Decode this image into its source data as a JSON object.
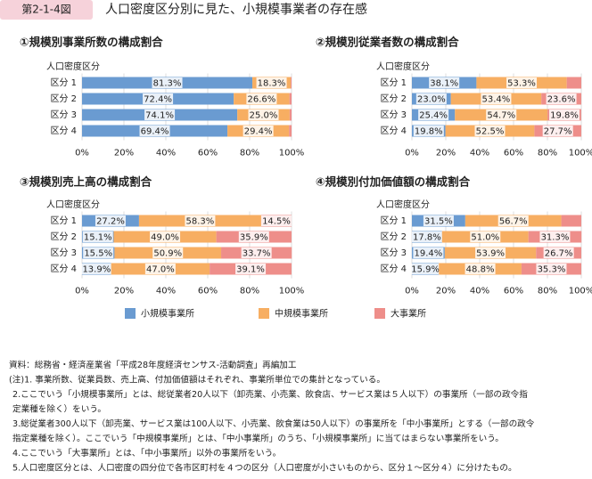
{
  "header": {
    "figure_number": "第2-1-4図",
    "title": "人口密度区分別に見た、小規模事業者の存在感"
  },
  "chart_data": [
    {
      "type": "stacked-bar-horizontal",
      "title": "①規模別事業所数の構成割合",
      "y_label": "人口密度区分",
      "categories": [
        "区分 1",
        "区分 2",
        "区分 3",
        "区分 4"
      ],
      "series": [
        {
          "name": "小規模事業所",
          "color": "#6a9bd1",
          "values": [
            81.3,
            72.4,
            74.1,
            69.4
          ],
          "value_labels": [
            "81.3%",
            "72.4%",
            "74.1%",
            "69.4%"
          ]
        },
        {
          "name": "中規模事業所",
          "color": "#f7ae62",
          "values": [
            18.3,
            26.6,
            25.0,
            29.4
          ],
          "value_labels": [
            "18.3%",
            "26.6%",
            "25.0%",
            "29.4%"
          ]
        },
        {
          "name": "大事業所",
          "color": "#ee8e8a",
          "values": [
            0.4,
            1.0,
            0.9,
            1.2
          ],
          "value_labels": [
            null,
            null,
            null,
            null
          ]
        }
      ],
      "xlim": [
        0,
        100
      ],
      "xticks": [
        {
          "value": 0,
          "label": "0%"
        },
        {
          "value": 20,
          "label": "20%"
        },
        {
          "value": 40,
          "label": "40%"
        },
        {
          "value": 60,
          "label": "60%"
        },
        {
          "value": 80,
          "label": "80%"
        },
        {
          "value": 100,
          "label": "100%"
        }
      ],
      "grid": true
    },
    {
      "type": "stacked-bar-horizontal",
      "title": "②規模別従業者数の構成割合",
      "y_label": "人口密度区分",
      "categories": [
        "区分 1",
        "区分 2",
        "区分 3",
        "区分 4"
      ],
      "series": [
        {
          "color": "#6a9bd1",
          "values": [
            38.1,
            23.0,
            25.4,
            19.8
          ],
          "value_labels": [
            "38.1%",
            "23.0%",
            "25.4%",
            "19.8%"
          ]
        },
        {
          "color": "#f7ae62",
          "values": [
            53.3,
            53.4,
            54.7,
            52.5
          ],
          "value_labels": [
            "53.3%",
            "53.4%",
            "54.7%",
            "52.5%"
          ]
        },
        {
          "color": "#ee8e8a",
          "values": [
            8.6,
            23.6,
            19.8,
            27.7
          ],
          "value_labels": [
            null,
            "23.6%",
            "19.8%",
            "27.7%"
          ]
        }
      ],
      "xlim": [
        0,
        100
      ],
      "xticks": [
        {
          "value": 0,
          "label": "0%"
        },
        {
          "value": 20,
          "label": "20%"
        },
        {
          "value": 40,
          "label": "40%"
        },
        {
          "value": 60,
          "label": "60%"
        },
        {
          "value": 80,
          "label": "80%"
        },
        {
          "value": 100,
          "label": "100%"
        }
      ],
      "grid": true
    },
    {
      "type": "stacked-bar-horizontal",
      "title": "③規模別売上高の構成割合",
      "y_label": "人口密度区分",
      "categories": [
        "区分 1",
        "区分 2",
        "区分 3",
        "区分 4"
      ],
      "series": [
        {
          "color": "#6a9bd1",
          "values": [
            27.2,
            15.1,
            15.5,
            13.9
          ],
          "value_labels": [
            "27.2%",
            "15.1%",
            "15.5%",
            "13.9%"
          ]
        },
        {
          "color": "#f7ae62",
          "values": [
            58.3,
            49.0,
            50.9,
            47.0
          ],
          "value_labels": [
            "58.3%",
            "49.0%",
            "50.9%",
            "47.0%"
          ]
        },
        {
          "color": "#ee8e8a",
          "values": [
            14.5,
            35.9,
            33.7,
            39.1
          ],
          "value_labels": [
            "14.5%",
            "35.9%",
            "33.7%",
            "39.1%"
          ]
        }
      ],
      "xlim": [
        0,
        100
      ],
      "xticks": [
        {
          "value": 0,
          "label": "0%"
        },
        {
          "value": 20,
          "label": "20%"
        },
        {
          "value": 40,
          "label": "40%"
        },
        {
          "value": 60,
          "label": "60%"
        },
        {
          "value": 80,
          "label": "80%"
        },
        {
          "value": 100,
          "label": "100%"
        }
      ],
      "grid": true
    },
    {
      "type": "stacked-bar-horizontal",
      "title": "④規模別付加価値額の構成割合",
      "y_label": "人口密度区分",
      "categories": [
        "区分 1",
        "区分 2",
        "区分 3",
        "区分 4"
      ],
      "series": [
        {
          "color": "#6a9bd1",
          "values": [
            31.5,
            17.8,
            19.4,
            15.9
          ],
          "value_labels": [
            "31.5%",
            "17.8%",
            "19.4%",
            "15.9%"
          ]
        },
        {
          "color": "#f7ae62",
          "values": [
            56.7,
            51.0,
            53.9,
            48.8
          ],
          "value_labels": [
            "56.7%",
            "51.0%",
            "53.9%",
            "48.8%"
          ]
        },
        {
          "color": "#ee8e8a",
          "values": [
            11.8,
            31.3,
            26.7,
            35.3
          ],
          "value_labels": [
            null,
            "31.3%",
            "26.7%",
            "35.3%"
          ]
        }
      ],
      "xlim": [
        0,
        100
      ],
      "xticks": [
        {
          "value": 0,
          "label": "0%"
        },
        {
          "value": 20,
          "label": "20%"
        },
        {
          "value": 40,
          "label": "40%"
        },
        {
          "value": 60,
          "label": "60%"
        },
        {
          "value": 80,
          "label": "80%"
        },
        {
          "value": 100,
          "label": "100%"
        }
      ],
      "grid": true
    }
  ],
  "notes": [
    "資料：総務省・経済産業省「平成28年度経済センサス-活動調査」再編加工",
    "(注)1. 事業所数、従業員数、売上高、付加価値額はそれぞれ、事業所単位での集計となっている。",
    "2.ここでいう「小規模事業所」とは、総従業者20人以下（卸売業、小売業、飲食店、サービス業は５人以下）の事業所（一部の政令指",
    "定業種を除く）をいう。",
    "3.総従業者300人以下（卸売業、サービス業は100人以下、小売業、飲食業は50人以下）の事業所を「中小事業所」とする（一部の政令",
    "指定業種を除く）。ここでいう「中規模事業所」とは、「中小事業所」のうち、「小規模事業所」に当てはまらない事業所をいう。",
    "4.ここでいう「大事業所」とは、「中小事業所」以外の事業所をいう。",
    "5.人口密度区分とは、人口密度の四分位で各市区町村を４つの区分（人口密度が小さいものから、区分１～区分４）に分けたもの。"
  ]
}
